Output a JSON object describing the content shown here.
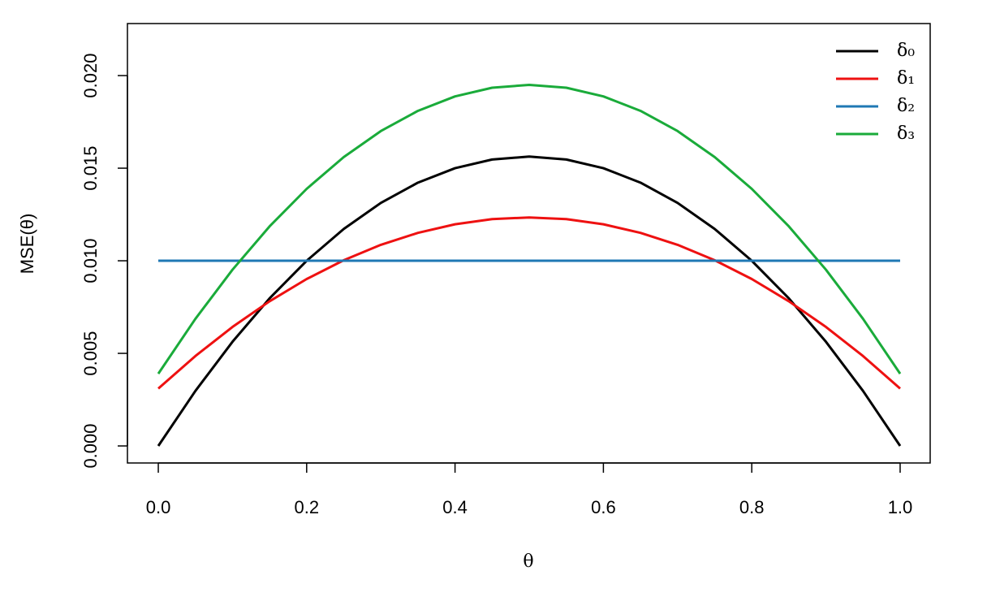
{
  "chart_data": {
    "type": "line",
    "x_label": "θ",
    "y_label": "MSE(θ)",
    "x": [
      0,
      0.05,
      0.1,
      0.15,
      0.2,
      0.25,
      0.3,
      0.35,
      0.4,
      0.45,
      0.5,
      0.55,
      0.6,
      0.65,
      0.7,
      0.75,
      0.8,
      0.85,
      0.9,
      0.95,
      1
    ],
    "series": [
      {
        "name": "δ₀",
        "color": "#000000",
        "values": [
          0,
          0.002969,
          0.005625,
          0.007969,
          0.01,
          0.011719,
          0.013125,
          0.014219,
          0.015,
          0.015469,
          0.015625,
          0.015469,
          0.015,
          0.014219,
          0.013125,
          0.011719,
          0.01,
          0.007969,
          0.005625,
          0.002969,
          0
        ]
      },
      {
        "name": "δ₁",
        "color": "#ee1111",
        "values": [
          0.0031,
          0.004856,
          0.006426,
          0.007812,
          0.009014,
          0.01003,
          0.010862,
          0.011508,
          0.01197,
          0.012248,
          0.01234,
          0.012248,
          0.01197,
          0.011508,
          0.010862,
          0.01003,
          0.009014,
          0.007812,
          0.006426,
          0.004856,
          0.0031
        ]
      },
      {
        "name": "δ₂",
        "color": "#1f78b4",
        "values": [
          0.01,
          0.01,
          0.01,
          0.01,
          0.01,
          0.01,
          0.01,
          0.01,
          0.01,
          0.01,
          0.01,
          0.01,
          0.01,
          0.01,
          0.01,
          0.01,
          0.01,
          0.01,
          0.01,
          0.01,
          0.01
        ]
      },
      {
        "name": "δ₃",
        "color": "#1aab3a",
        "values": [
          0.0039,
          0.006864,
          0.009516,
          0.011856,
          0.013884,
          0.0156,
          0.017004,
          0.018096,
          0.018876,
          0.019344,
          0.0195,
          0.019344,
          0.018876,
          0.018096,
          0.017004,
          0.0156,
          0.013884,
          0.011856,
          0.009516,
          0.006864,
          0.0039
        ]
      }
    ],
    "xlim": [
      -0.0416,
      1.0405
    ],
    "ylim": [
      -0.00092,
      0.02281
    ],
    "xticks": [
      {
        "value": 0,
        "label": "0.0"
      },
      0.2,
      0.4,
      0.6,
      0.8,
      {
        "value": 1,
        "label": "1.0"
      }
    ],
    "yticks": [
      {
        "value": 0,
        "label": "0.000"
      },
      0.005,
      {
        "value": 0.01,
        "label": "0.010"
      },
      0.015,
      {
        "value": 0.02,
        "label": "0.020"
      }
    ],
    "legend": "top-right"
  }
}
